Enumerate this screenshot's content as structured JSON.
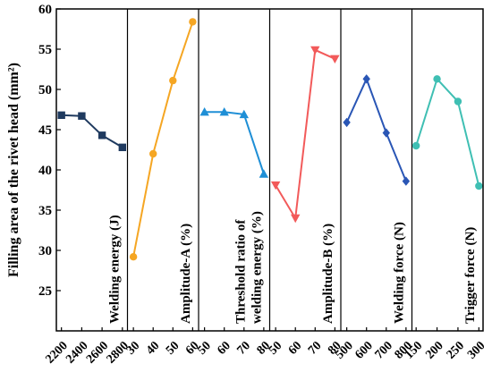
{
  "chart_data": {
    "type": "line",
    "ylabel": "Filling area of the rivet head (mm²)",
    "ylim": [
      20,
      60
    ],
    "yticks": [
      25,
      30,
      35,
      40,
      45,
      50,
      55,
      60
    ],
    "panels": [
      {
        "label_lines": [
          "Welding energy (J)"
        ],
        "color": "#1f3a5f",
        "marker": "square",
        "xlim": [
          2150,
          2850
        ],
        "xticks": [
          2200,
          2400,
          2600,
          2800
        ],
        "x": [
          2200,
          2400,
          2600,
          2800
        ],
        "y": [
          46.8,
          46.7,
          44.3,
          42.8
        ]
      },
      {
        "label_lines": [
          "Amplitude-A (%)"
        ],
        "color": "#f5a623",
        "marker": "circle",
        "xlim": [
          27,
          63
        ],
        "xticks": [
          30,
          40,
          50,
          60
        ],
        "x": [
          30,
          40,
          50,
          60
        ],
        "y": [
          29.2,
          42.0,
          51.1,
          58.4
        ]
      },
      {
        "label_lines": [
          "Threshold ratio of",
          "welding energy (%)"
        ],
        "color": "#1f8fd6",
        "marker": "triangle-up",
        "xlim": [
          47,
          83
        ],
        "xticks": [
          50,
          60,
          70,
          80
        ],
        "x": [
          50,
          60,
          70,
          80
        ],
        "y": [
          47.2,
          47.2,
          46.9,
          39.5
        ]
      },
      {
        "label_lines": [
          "Amplitude-B (%)"
        ],
        "color": "#f25a5a",
        "marker": "triangle-down",
        "xlim": [
          47,
          83
        ],
        "xticks": [
          50,
          60,
          70,
          80
        ],
        "x": [
          50,
          60,
          70,
          80
        ],
        "y": [
          38.1,
          34.0,
          54.9,
          53.8
        ]
      },
      {
        "label_lines": [
          "Welding force (N)"
        ],
        "color": "#2a56b5",
        "marker": "diamond",
        "xlim": [
          470,
          830
        ],
        "xticks": [
          500,
          600,
          700,
          800
        ],
        "x": [
          500,
          600,
          700,
          800
        ],
        "y": [
          45.9,
          51.3,
          44.6,
          38.6
        ]
      },
      {
        "label_lines": [
          "Trigger force (N)"
        ],
        "color": "#3fbfb3",
        "marker": "circle",
        "xlim": [
          140,
          310
        ],
        "xticks": [
          150,
          200,
          250,
          300
        ],
        "x": [
          150,
          200,
          250,
          300
        ],
        "y": [
          43.0,
          51.3,
          48.5,
          38.0
        ]
      }
    ]
  }
}
